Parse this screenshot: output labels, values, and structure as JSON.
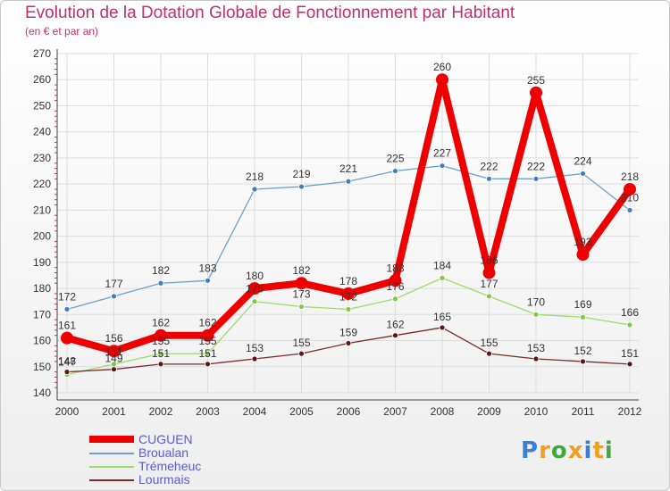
{
  "chart_data": {
    "type": "line",
    "title": "Evolution de la Dotation Globale de Fonctionnement par Habitant",
    "subtitle": "(en € et par an)",
    "x": [
      "2000",
      "2001",
      "2002",
      "2003",
      "2004",
      "2005",
      "2006",
      "2007",
      "2008",
      "2009",
      "2010",
      "2011",
      "2012"
    ],
    "ylim": [
      140,
      270
    ],
    "yticks": [
      140,
      150,
      160,
      170,
      180,
      190,
      200,
      210,
      220,
      230,
      240,
      250,
      260,
      270
    ],
    "grid": true,
    "legend_position": "bottom-left",
    "series": [
      {
        "name": "CUGUEN",
        "color": "#ee0000",
        "values": [
          161,
          156,
          162,
          162,
          180,
          182,
          178,
          183,
          260,
          186,
          255,
          193,
          218
        ]
      },
      {
        "name": "Broualan",
        "color": "#6b9fd1",
        "values": [
          172,
          177,
          182,
          183,
          218,
          219,
          221,
          225,
          227,
          222,
          222,
          224,
          210
        ]
      },
      {
        "name": "Trémeheuc",
        "color": "#99dd66",
        "values": [
          147,
          151,
          155,
          155,
          175,
          173,
          172,
          176,
          184,
          177,
          170,
          169,
          166
        ]
      },
      {
        "name": "Lourmais",
        "color": "#7a2a2a",
        "values": [
          148,
          149,
          151,
          151,
          153,
          155,
          159,
          162,
          165,
          155,
          153,
          152,
          151
        ]
      }
    ]
  },
  "logo": {
    "letters": [
      "P",
      "r",
      "o",
      "x",
      "i",
      "t",
      "i"
    ],
    "colors": [
      "#3a7fd0",
      "#f0a020",
      "#40a840",
      "#f0a020",
      "#3a7fd0",
      "#f0a020",
      "#40a840"
    ]
  }
}
